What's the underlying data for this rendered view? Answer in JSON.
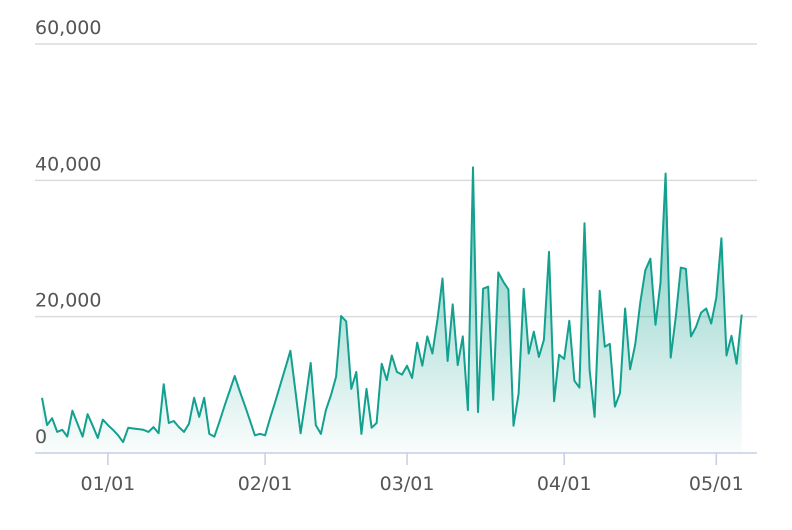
{
  "chart_data": {
    "type": "area",
    "categories": [
      null,
      null,
      null,
      null,
      null,
      null,
      null,
      null,
      null,
      null,
      null,
      null,
      null,
      "01/01",
      null,
      null,
      null,
      null,
      null,
      null,
      null,
      null,
      null,
      null,
      null,
      null,
      null,
      null,
      null,
      null,
      null,
      null,
      null,
      null,
      null,
      null,
      null,
      null,
      null,
      null,
      null,
      null,
      null,
      null,
      "02/01",
      null,
      null,
      null,
      null,
      null,
      null,
      null,
      null,
      null,
      null,
      null,
      null,
      null,
      null,
      null,
      null,
      null,
      null,
      null,
      null,
      null,
      null,
      null,
      null,
      null,
      null,
      null,
      "03/01",
      null,
      null,
      null,
      null,
      null,
      null,
      null,
      null,
      null,
      null,
      null,
      null,
      null,
      null,
      null,
      null,
      null,
      null,
      null,
      null,
      null,
      null,
      null,
      null,
      null,
      null,
      null,
      null,
      null,
      null,
      "04/01",
      null,
      null,
      null,
      null,
      null,
      null,
      null,
      null,
      null,
      null,
      null,
      null,
      null,
      null,
      null,
      null,
      null,
      null,
      null,
      null,
      null,
      null,
      null,
      null,
      null,
      null,
      null,
      null,
      null,
      "05/01",
      null,
      null,
      null,
      null,
      null
    ],
    "values": [
      8100,
      4100,
      5100,
      3100,
      3400,
      2400,
      6200,
      4300,
      2400,
      5700,
      4000,
      2200,
      4900,
      4100,
      3400,
      2600,
      1600,
      3700,
      3600,
      3500,
      3400,
      3100,
      3800,
      2900,
      10100,
      4400,
      4700,
      3800,
      3100,
      4300,
      8100,
      5300,
      8100,
      2800,
      2400,
      4600,
      6900,
      9100,
      11300,
      9100,
      7000,
      4800,
      2600,
      2800,
      2600,
      5100,
      7500,
      10000,
      12500,
      15000,
      9000,
      2900,
      7800,
      13200,
      4100,
      2800,
      6300,
      8500,
      11200,
      20100,
      19300,
      9400,
      11900,
      2800,
      9400,
      3700,
      4400,
      13100,
      10700,
      14300,
      11900,
      11500,
      12800,
      11000,
      16200,
      12800,
      17100,
      14600,
      19600,
      25600,
      13500,
      21800,
      12900,
      17100,
      6300,
      41900,
      6000,
      24100,
      24400,
      7800,
      26500,
      25100,
      24000,
      4000,
      8700,
      24100,
      14600,
      17800,
      14100,
      16600,
      29500,
      7600,
      14400,
      13800,
      19400,
      10600,
      9600,
      33700,
      12200,
      5300,
      23800,
      15600,
      16000,
      6800,
      8800,
      21200,
      12300,
      15900,
      22100,
      26800,
      28500,
      18800,
      25000,
      41000,
      14000,
      20000,
      27200,
      27000,
      17100,
      18500,
      20600,
      21200,
      19000,
      22800,
      31500,
      14300,
      17200,
      13100,
      20300
    ],
    "color": "#13a08f",
    "ylim": [
      0,
      60000
    ],
    "yticks": [
      0,
      {
        "value": 20000,
        "label": "20,000"
      },
      {
        "value": 40000,
        "label": "40,000"
      },
      {
        "value": 60000,
        "label": "60,000"
      }
    ],
    "grid": true
  }
}
